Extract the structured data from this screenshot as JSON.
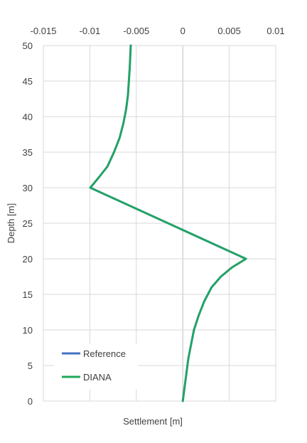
{
  "chart_data": {
    "type": "line",
    "title": "",
    "xlabel": "Settlement [m]",
    "ylabel": "Depth [m]",
    "xlim": [
      -0.015,
      0.01
    ],
    "ylim": [
      0,
      50
    ],
    "x_axis_position": "top",
    "xticks": [
      "-0.015",
      "-0.01",
      "-0.005",
      "0",
      "0.005",
      "0.01"
    ],
    "yticks": [
      "0",
      "5",
      "10",
      "15",
      "20",
      "25",
      "30",
      "35",
      "40",
      "45",
      "50"
    ],
    "grid": true,
    "legend_position": "bottom-left",
    "series": [
      {
        "name": "Reference",
        "color": "#4472C4",
        "points": [
          [
            0.0,
            0
          ],
          [
            0.0002,
            2
          ],
          [
            0.0004,
            4
          ],
          [
            0.0006,
            6
          ],
          [
            0.0009,
            8
          ],
          [
            0.0012,
            10
          ],
          [
            0.0017,
            12
          ],
          [
            0.0023,
            14
          ],
          [
            0.0031,
            16
          ],
          [
            0.0041,
            17.5
          ],
          [
            0.0053,
            18.8
          ],
          [
            0.0068,
            20
          ],
          [
            -0.00995,
            30
          ],
          [
            -0.009,
            31.5
          ],
          [
            -0.0081,
            33
          ],
          [
            -0.0074,
            35
          ],
          [
            -0.0068,
            37
          ],
          [
            -0.0064,
            39
          ],
          [
            -0.0061,
            41
          ],
          [
            -0.0059,
            43
          ],
          [
            -0.0058,
            45
          ],
          [
            -0.0057,
            47
          ],
          [
            -0.0056,
            50
          ]
        ]
      },
      {
        "name": "DIANA",
        "color": "#1FA85A",
        "points": [
          [
            0.0,
            0
          ],
          [
            0.0002,
            2
          ],
          [
            0.0004,
            4
          ],
          [
            0.0006,
            6
          ],
          [
            0.0009,
            8
          ],
          [
            0.0012,
            10
          ],
          [
            0.0017,
            12
          ],
          [
            0.0023,
            14
          ],
          [
            0.0031,
            16
          ],
          [
            0.0041,
            17.5
          ],
          [
            0.0053,
            18.8
          ],
          [
            0.0068,
            20
          ],
          [
            -0.00995,
            30
          ],
          [
            -0.009,
            31.5
          ],
          [
            -0.0081,
            33
          ],
          [
            -0.0074,
            35
          ],
          [
            -0.0068,
            37
          ],
          [
            -0.0064,
            39
          ],
          [
            -0.0061,
            41
          ],
          [
            -0.0059,
            43
          ],
          [
            -0.0058,
            45
          ],
          [
            -0.0057,
            47
          ],
          [
            -0.0056,
            50
          ]
        ]
      }
    ]
  }
}
